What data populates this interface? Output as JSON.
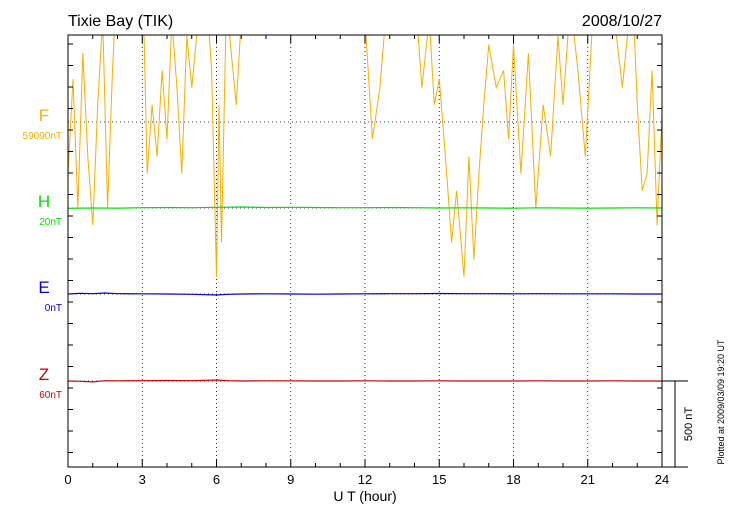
{
  "header": {
    "station": "Tixie Bay (TIK)",
    "date": "2008/10/27"
  },
  "axes": {
    "xlabel": "U T (hour)",
    "xticks": [
      "0",
      "3",
      "6",
      "9",
      "12",
      "15",
      "18",
      "21",
      "24"
    ],
    "scale_label": "500 nT"
  },
  "footer": {
    "plotted": "Plotted at 2009/03/09 19:20 UT"
  },
  "chart_data": {
    "type": "line",
    "title": "Tixie Bay (TIK)",
    "subtitle": "2008/10/27",
    "xlabel": "U T (hour)",
    "ylabel": "",
    "xlim": [
      0,
      24
    ],
    "grid": true,
    "legend": "left",
    "scale_bar": {
      "label": "500 nT",
      "value_nT": 500
    },
    "series": [
      {
        "name": "F",
        "baseline": "59090nT",
        "color": "#f5b000",
        "x": [
          0,
          0.2,
          0.4,
          0.6,
          0.8,
          1.0,
          1.2,
          1.4,
          1.6,
          1.8,
          2.0,
          2.5,
          3.0,
          3.2,
          3.4,
          3.6,
          3.8,
          4.0,
          4.2,
          4.4,
          4.6,
          4.8,
          5.0,
          5.5,
          5.8,
          6.0,
          6.1,
          6.2,
          6.4,
          6.6,
          6.8,
          7.0,
          7.5,
          8.0,
          8.5,
          9.0,
          9.5,
          10.0,
          10.5,
          11.0,
          11.5,
          11.8,
          12.0,
          12.3,
          12.6,
          13.0,
          13.5,
          14.0,
          14.3,
          14.6,
          14.8,
          15.0,
          15.3,
          15.5,
          15.7,
          16.0,
          16.2,
          16.4,
          16.6,
          16.8,
          17.0,
          17.3,
          17.6,
          17.8,
          18.0,
          18.3,
          18.6,
          18.9,
          19.2,
          19.5,
          19.8,
          20.0,
          20.3,
          20.6,
          20.9,
          21.2,
          21.5,
          21.8,
          22.0,
          22.4,
          22.8,
          23.0,
          23.2,
          23.4,
          23.6,
          23.8,
          24.0
        ],
        "values": [
          -300,
          250,
          -500,
          400,
          -200,
          -600,
          100,
          600,
          -500,
          300,
          900,
          950,
          950,
          -300,
          100,
          -200,
          300,
          -100,
          600,
          200,
          -300,
          500,
          200,
          950,
          300,
          -900,
          100,
          -700,
          700,
          400,
          100,
          600,
          950,
          950,
          950,
          950,
          950,
          950,
          950,
          950,
          950,
          950,
          600,
          -100,
          200,
          900,
          950,
          800,
          200,
          600,
          100,
          250,
          -300,
          -700,
          -400,
          -900,
          -200,
          -800,
          -300,
          100,
          450,
          200,
          300,
          -100,
          450,
          -300,
          400,
          -500,
          100,
          -200,
          500,
          100,
          700,
          300,
          -200,
          600,
          900,
          950,
          700,
          200,
          800,
          100,
          -400,
          -300,
          300,
          -600,
          50
        ]
      },
      {
        "name": "H",
        "baseline": "20nT",
        "color": "#00e000",
        "x": [
          0,
          1,
          2,
          3,
          4,
          5,
          6,
          7,
          8,
          9,
          10,
          11,
          12,
          13,
          14,
          15,
          16,
          17,
          18,
          19,
          20,
          21,
          22,
          23,
          24
        ],
        "values": [
          -2,
          0,
          -1,
          2,
          3,
          2,
          4,
          6,
          3,
          4,
          3,
          2,
          2,
          3,
          2,
          0,
          1,
          0,
          -1,
          1,
          0,
          -1,
          0,
          1,
          0
        ]
      },
      {
        "name": "E",
        "baseline": "0nT",
        "color": "#0000cc",
        "x": [
          0,
          0.5,
          1,
          1.5,
          2,
          3,
          4,
          5,
          6,
          6.5,
          7,
          8,
          9,
          10,
          11,
          12,
          13,
          14,
          15,
          16,
          17,
          18,
          19,
          20,
          21,
          22,
          23,
          24
        ],
        "values": [
          0,
          4,
          2,
          6,
          2,
          1,
          0,
          -2,
          -6,
          -2,
          0,
          1,
          0,
          -1,
          0,
          1,
          2,
          2,
          3,
          2,
          2,
          1,
          2,
          1,
          1,
          1,
          0,
          0
        ]
      },
      {
        "name": "Z",
        "baseline": "60nT",
        "color": "#cc0000",
        "x": [
          0,
          0.5,
          1,
          1.5,
          2,
          3,
          4,
          5,
          6,
          6.5,
          7,
          8,
          9,
          10,
          11,
          12,
          13,
          14,
          15,
          16,
          17,
          18,
          19,
          20,
          21,
          22,
          23,
          24
        ],
        "values": [
          0,
          -2,
          -5,
          2,
          1,
          2,
          3,
          2,
          6,
          2,
          0,
          1,
          1,
          0,
          0,
          1,
          0,
          0,
          1,
          0,
          0,
          0,
          1,
          0,
          0,
          1,
          0,
          0
        ]
      }
    ]
  }
}
